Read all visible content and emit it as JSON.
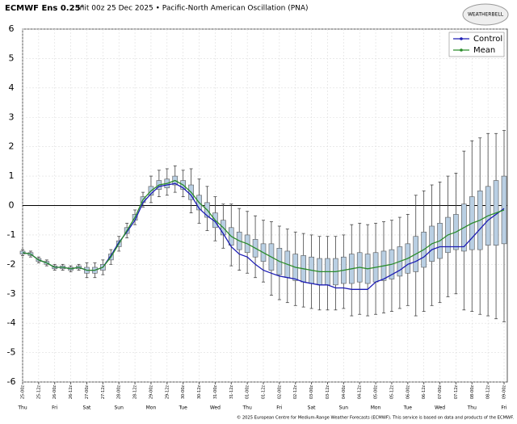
{
  "chart_data": {
    "type": "box",
    "title": "ECMWF Ens 0.25°",
    "subtitle": "Init 00z 25 Dec 2025 • Pacific-North American Oscillation (PNA)",
    "logo": "WEATHERBELL",
    "footer": "© 2025 European Centre for Medium-Range Weather Forecasts (ECMWF). This service is based on data and products of the ECMWF.",
    "categories": [
      "25-00z",
      null,
      "25-12z",
      null,
      "26-00z",
      null,
      "26-12z",
      null,
      "27-00z",
      null,
      "27-12z",
      null,
      "28-00z",
      null,
      "28-12z",
      null,
      "29-00z",
      null,
      "29-12z",
      null,
      "30-00z",
      null,
      "30-12z",
      null,
      "31-00z",
      null,
      "31-12z",
      null,
      "01-00z",
      null,
      "01-12z",
      null,
      "02-00z",
      null,
      "02-12z",
      null,
      "03-00z",
      null,
      "03-12z",
      null,
      "04-00z",
      null,
      "04-12z",
      null,
      "05-00z",
      null,
      "05-12z",
      null,
      "06-00z",
      null,
      "06-12z",
      null,
      "07-00z",
      null,
      "07-12z",
      null,
      "08-00z",
      null,
      "08-12z",
      null,
      "09-00z"
    ],
    "day_labels": [
      "Thu",
      "Fri",
      "Sat",
      "Sun",
      "Mon",
      "Tue",
      "Wed",
      "Thu",
      "Fri",
      "Sat",
      "Sun",
      "Mon",
      "Tue",
      "Wed",
      "Thu",
      "Fri"
    ],
    "ylim": [
      -6,
      6
    ],
    "yticks": [
      -6,
      -5,
      -4,
      -3,
      -2,
      -1,
      0,
      1,
      2,
      3,
      4,
      5,
      6
    ],
    "grid": true,
    "legend": "upper right",
    "box": {
      "color": "#b9cfe3",
      "low": [
        -1.7,
        -1.75,
        -1.95,
        -2.05,
        -2.2,
        -2.2,
        -2.25,
        -2.2,
        -2.45,
        -2.45,
        -2.35,
        -2.0,
        -1.55,
        -1.1,
        -0.65,
        -0.05,
        0.1,
        0.3,
        0.35,
        0.45,
        0.3,
        -0.25,
        -0.6,
        -0.85,
        -1.2,
        -1.45,
        -2.05,
        -2.2,
        -2.3,
        -2.45,
        -2.6,
        -3.05,
        -3.2,
        -3.3,
        -3.4,
        -3.45,
        -3.5,
        -3.55,
        -3.55,
        -3.55,
        -3.5,
        -3.75,
        -3.7,
        -3.75,
        -3.7,
        -3.65,
        -3.6,
        -3.5,
        -3.4,
        -3.75,
        -3.6,
        -3.4,
        -3.3,
        -3.1,
        -3.0,
        -3.55,
        -3.6,
        -3.7,
        -3.75,
        -3.85,
        -3.95
      ],
      "q1": [
        -1.65,
        -1.7,
        -1.9,
        -2.0,
        -2.15,
        -2.15,
        -2.2,
        -2.15,
        -2.3,
        -2.3,
        -2.2,
        -1.85,
        -1.4,
        -0.95,
        -0.5,
        0.1,
        0.35,
        0.55,
        0.6,
        0.7,
        0.55,
        0.2,
        -0.15,
        -0.4,
        -0.75,
        -1.0,
        -1.35,
        -1.5,
        -1.6,
        -1.75,
        -1.9,
        -2.2,
        -2.35,
        -2.45,
        -2.55,
        -2.6,
        -2.65,
        -2.7,
        -2.7,
        -2.7,
        -2.65,
        -2.65,
        -2.6,
        -2.65,
        -2.6,
        -2.55,
        -2.5,
        -2.4,
        -2.3,
        -2.25,
        -2.1,
        -1.9,
        -1.8,
        -1.6,
        -1.5,
        -1.55,
        -1.5,
        -1.5,
        -1.35,
        -1.35,
        -1.3
      ],
      "q3": [
        -1.55,
        -1.6,
        -1.8,
        -1.9,
        -2.05,
        -2.05,
        -2.1,
        -2.05,
        -2.1,
        -2.1,
        -2.0,
        -1.65,
        -1.2,
        -0.75,
        -0.3,
        0.3,
        0.65,
        0.85,
        0.9,
        1.0,
        0.85,
        0.7,
        0.35,
        0.1,
        -0.25,
        -0.5,
        -0.75,
        -0.9,
        -1.0,
        -1.15,
        -1.3,
        -1.3,
        -1.45,
        -1.55,
        -1.65,
        -1.7,
        -1.75,
        -1.8,
        -1.8,
        -1.8,
        -1.75,
        -1.65,
        -1.6,
        -1.65,
        -1.6,
        -1.55,
        -1.5,
        -1.4,
        -1.3,
        -1.05,
        -0.9,
        -0.7,
        -0.6,
        -0.4,
        -0.3,
        0.05,
        0.3,
        0.5,
        0.65,
        0.85,
        1.0
      ],
      "high": [
        -1.5,
        -1.55,
        -1.75,
        -1.85,
        -2.0,
        -2.0,
        -2.05,
        -2.0,
        -1.95,
        -1.95,
        -1.85,
        -1.5,
        -1.05,
        -0.6,
        -0.15,
        0.45,
        1.0,
        1.2,
        1.25,
        1.35,
        1.2,
        1.25,
        0.9,
        0.65,
        0.3,
        0.05,
        0.05,
        -0.1,
        -0.2,
        -0.35,
        -0.5,
        -0.55,
        -0.7,
        -0.8,
        -0.9,
        -0.95,
        -1.0,
        -1.05,
        -1.05,
        -1.05,
        -1.0,
        -0.65,
        -0.6,
        -0.65,
        -0.6,
        -0.55,
        -0.5,
        -0.4,
        -0.3,
        0.35,
        0.5,
        0.7,
        0.8,
        1.0,
        1.1,
        1.85,
        2.2,
        2.3,
        2.45,
        2.45,
        2.55
      ]
    },
    "series": [
      {
        "name": "Control",
        "color": "#1c1cb4",
        "values": [
          -1.6,
          -1.65,
          -1.85,
          -1.95,
          -2.1,
          -2.1,
          -2.15,
          -2.1,
          -2.2,
          -2.2,
          -2.1,
          -1.7,
          -1.25,
          -0.9,
          -0.5,
          0.1,
          0.4,
          0.65,
          0.7,
          0.75,
          0.6,
          0.35,
          -0.1,
          -0.35,
          -0.55,
          -0.95,
          -1.4,
          -1.65,
          -1.75,
          -2.0,
          -2.2,
          -2.3,
          -2.4,
          -2.45,
          -2.5,
          -2.6,
          -2.65,
          -2.7,
          -2.7,
          -2.8,
          -2.8,
          -2.85,
          -2.85,
          -2.85,
          -2.6,
          -2.5,
          -2.35,
          -2.2,
          -2.0,
          -1.9,
          -1.75,
          -1.5,
          -1.4,
          -1.4,
          -1.4,
          -1.4,
          -1.1,
          -0.8,
          -0.5,
          -0.3,
          -0.1
        ]
      },
      {
        "name": "Mean",
        "color": "#2a8c2a",
        "values": [
          -1.6,
          -1.65,
          -1.85,
          -1.95,
          -2.1,
          -2.1,
          -2.15,
          -2.1,
          -2.2,
          -2.2,
          -2.1,
          -1.75,
          -1.3,
          -0.85,
          -0.4,
          0.2,
          0.5,
          0.7,
          0.75,
          0.85,
          0.7,
          0.45,
          0.1,
          -0.15,
          -0.5,
          -0.75,
          -1.05,
          -1.2,
          -1.3,
          -1.45,
          -1.6,
          -1.75,
          -1.9,
          -2.0,
          -2.1,
          -2.15,
          -2.2,
          -2.25,
          -2.25,
          -2.25,
          -2.2,
          -2.15,
          -2.1,
          -2.15,
          -2.1,
          -2.05,
          -2.0,
          -1.9,
          -1.8,
          -1.65,
          -1.5,
          -1.3,
          -1.2,
          -1.0,
          -0.9,
          -0.75,
          -0.6,
          -0.5,
          -0.35,
          -0.25,
          -0.15
        ]
      }
    ]
  }
}
